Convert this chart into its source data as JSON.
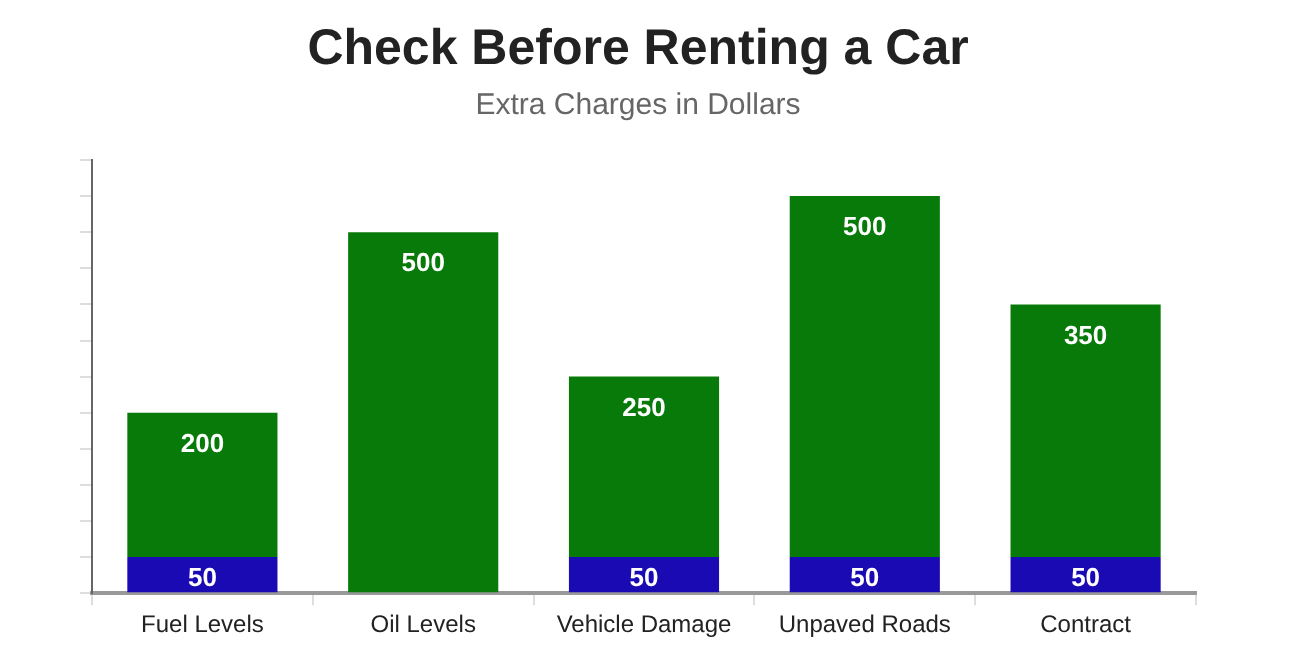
{
  "chart_data": {
    "type": "bar",
    "title": "Check Before Renting a Car",
    "subtitle": "Extra Charges in Dollars",
    "stacked": true,
    "categories": [
      "Fuel Levels",
      "Oil Levels",
      "Vehicle Damage",
      "Unpaved Roads",
      "Contract"
    ],
    "series": [
      {
        "color": "#1a0ab4",
        "values": [
          50,
          null,
          50,
          50,
          50
        ]
      },
      {
        "color": "#087a0a",
        "values": [
          200,
          500,
          250,
          500,
          350
        ]
      }
    ],
    "ylim": [
      0,
      600
    ],
    "yticks": [
      {
        "value": 0,
        "label": null
      },
      {
        "value": 50,
        "label": null
      },
      {
        "value": 100,
        "label": null
      },
      {
        "value": 150,
        "label": null
      },
      {
        "value": 200,
        "label": null
      },
      {
        "value": 250,
        "label": null
      },
      {
        "value": 300,
        "label": null
      },
      {
        "value": 350,
        "label": null
      },
      {
        "value": 400,
        "label": null
      },
      {
        "value": 450,
        "label": null
      },
      {
        "value": 500,
        "label": null
      },
      {
        "value": 550,
        "label": null
      },
      {
        "value": 600,
        "label": null
      }
    ],
    "tick_labels": "x",
    "data_labels": true,
    "grid": false,
    "legend": false
  }
}
